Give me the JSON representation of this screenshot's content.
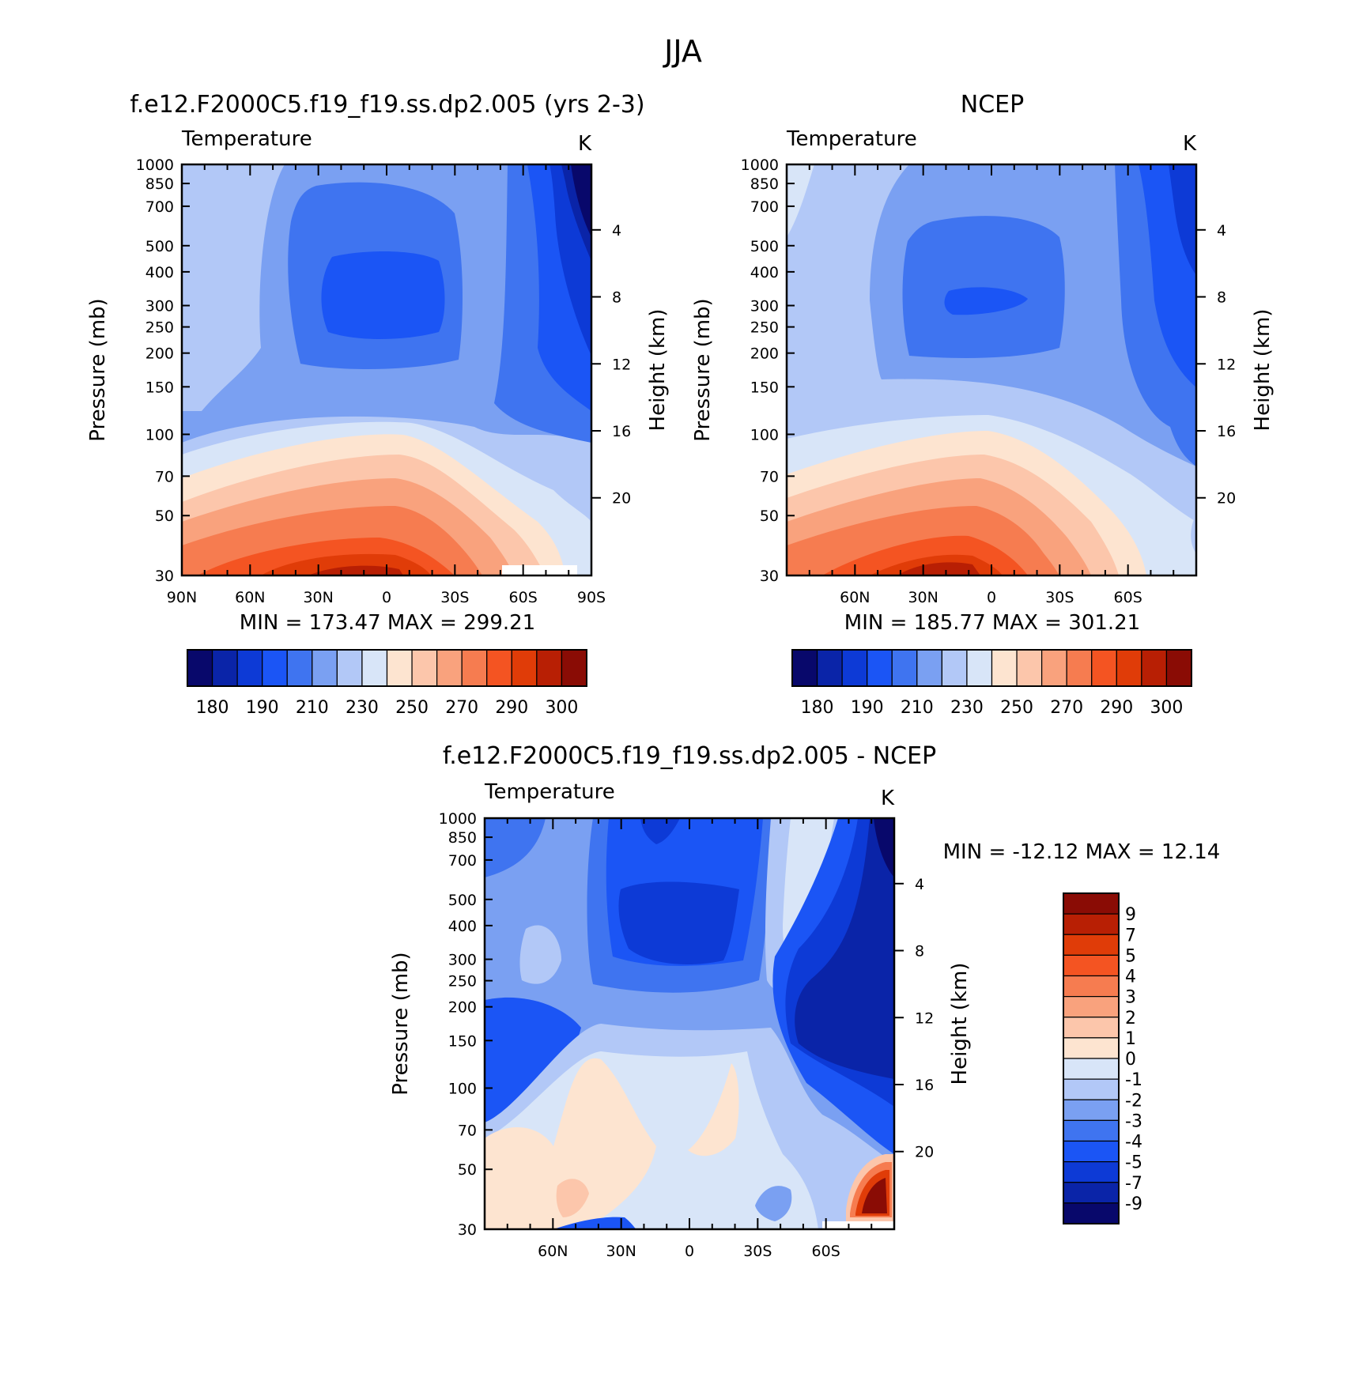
{
  "figure_title": "JJA",
  "chart_data": [
    {
      "id": "model",
      "type": "heatmap",
      "title": "f.e12.F2000C5.f19_f19.ss.dp2.005 (yrs 2-3)",
      "subtitle_left": "Temperature",
      "subtitle_right": "K",
      "ylabel": "Pressure (mb)",
      "ylabel_right": "Height (km)",
      "xlim": [
        90,
        -90
      ],
      "ylim": [
        1000,
        30
      ],
      "x_ticks": [
        {
          "v": 90,
          "label": "90N"
        },
        {
          "v": 60,
          "label": "60N"
        },
        {
          "v": 30,
          "label": "30N"
        },
        {
          "v": 0,
          "label": "0"
        },
        {
          "v": -30,
          "label": "30S"
        },
        {
          "v": -60,
          "label": "60S"
        },
        {
          "v": -90,
          "label": "90S"
        }
      ],
      "y_ticks": [
        "30",
        "50",
        "70",
        "100",
        "150",
        "200",
        "250",
        "300",
        "400",
        "500",
        "700",
        "850",
        "1000"
      ],
      "height_ticks": [
        "4",
        "8",
        "12",
        "16",
        "20"
      ],
      "minmax_text": "MIN = 173.47 MAX = 299.21",
      "colorbar_labels": [
        "180",
        "190",
        "210",
        "230",
        "250",
        "270",
        "290",
        "300"
      ],
      "levels": [
        175,
        180,
        185,
        190,
        200,
        210,
        220,
        230,
        240,
        250,
        260,
        270,
        280,
        290,
        295,
        300
      ]
    },
    {
      "id": "obs",
      "type": "heatmap",
      "title": "NCEP",
      "subtitle_left": "Temperature",
      "subtitle_right": "K",
      "ylabel": "Pressure (mb)",
      "ylabel_right": "Height (km)",
      "xlim": [
        90,
        -90
      ],
      "ylim": [
        1000,
        30
      ],
      "x_ticks": [
        {
          "v": 60,
          "label": "60N"
        },
        {
          "v": 30,
          "label": "30N"
        },
        {
          "v": 0,
          "label": "0"
        },
        {
          "v": -30,
          "label": "30S"
        },
        {
          "v": -60,
          "label": "60S"
        }
      ],
      "y_ticks": [
        "30",
        "50",
        "70",
        "100",
        "150",
        "200",
        "250",
        "300",
        "400",
        "500",
        "700",
        "850",
        "1000"
      ],
      "height_ticks": [
        "4",
        "8",
        "12",
        "16",
        "20"
      ],
      "minmax_text": "MIN = 185.77 MAX = 301.21",
      "colorbar_labels": [
        "180",
        "190",
        "210",
        "230",
        "250",
        "270",
        "290",
        "300"
      ],
      "levels": [
        175,
        180,
        185,
        190,
        200,
        210,
        220,
        230,
        240,
        250,
        260,
        270,
        280,
        290,
        295,
        300
      ]
    },
    {
      "id": "diff",
      "type": "heatmap",
      "title": "f.e12.F2000C5.f19_f19.ss.dp2.005 - NCEP",
      "subtitle_left": "Temperature",
      "subtitle_right": "K",
      "ylabel": "Pressure (mb)",
      "ylabel_right": "Height (km)",
      "xlim": [
        90,
        -90
      ],
      "ylim": [
        1000,
        30
      ],
      "x_ticks": [
        {
          "v": 60,
          "label": "60N"
        },
        {
          "v": 30,
          "label": "30N"
        },
        {
          "v": 0,
          "label": "0"
        },
        {
          "v": -30,
          "label": "30S"
        },
        {
          "v": -60,
          "label": "60S"
        }
      ],
      "y_ticks": [
        "30",
        "50",
        "70",
        "100",
        "150",
        "200",
        "250",
        "300",
        "400",
        "500",
        "700",
        "850",
        "1000"
      ],
      "height_ticks": [
        "4",
        "8",
        "12",
        "16",
        "20"
      ],
      "minmax_text": "MIN = -12.12 MAX = 12.14",
      "colorbar_labels": [
        "9",
        "7",
        "5",
        "4",
        "3",
        "2",
        "1",
        "0",
        "-1",
        "-2",
        "-3",
        "-4",
        "-5",
        "-7",
        "-9"
      ],
      "levels": [
        -9,
        -7,
        -5,
        -4,
        -3,
        -2,
        -1,
        0,
        1,
        2,
        3,
        4,
        5,
        7,
        9
      ]
    }
  ],
  "colors": {
    "temperature_palette": [
      "#08086b",
      "#0a24a8",
      "#0d3ad6",
      "#1b55f5",
      "#3f74f0",
      "#7aa0f2",
      "#b2c8f7",
      "#d8e5f8",
      "#fde4d0",
      "#fcc6ab",
      "#f9a27d",
      "#f67c50",
      "#f45422",
      "#e03c08",
      "#b81f04",
      "#8a0c05"
    ],
    "difference_palette": [
      "#08086b",
      "#0a24a8",
      "#0d3ad6",
      "#1b55f5",
      "#3f74f0",
      "#7aa0f2",
      "#b2c8f7",
      "#d8e5f8",
      "#fde4d0",
      "#fcc6ab",
      "#f9a27d",
      "#f67c50",
      "#f45422",
      "#e03c08",
      "#b81f04",
      "#8a0c05"
    ]
  }
}
